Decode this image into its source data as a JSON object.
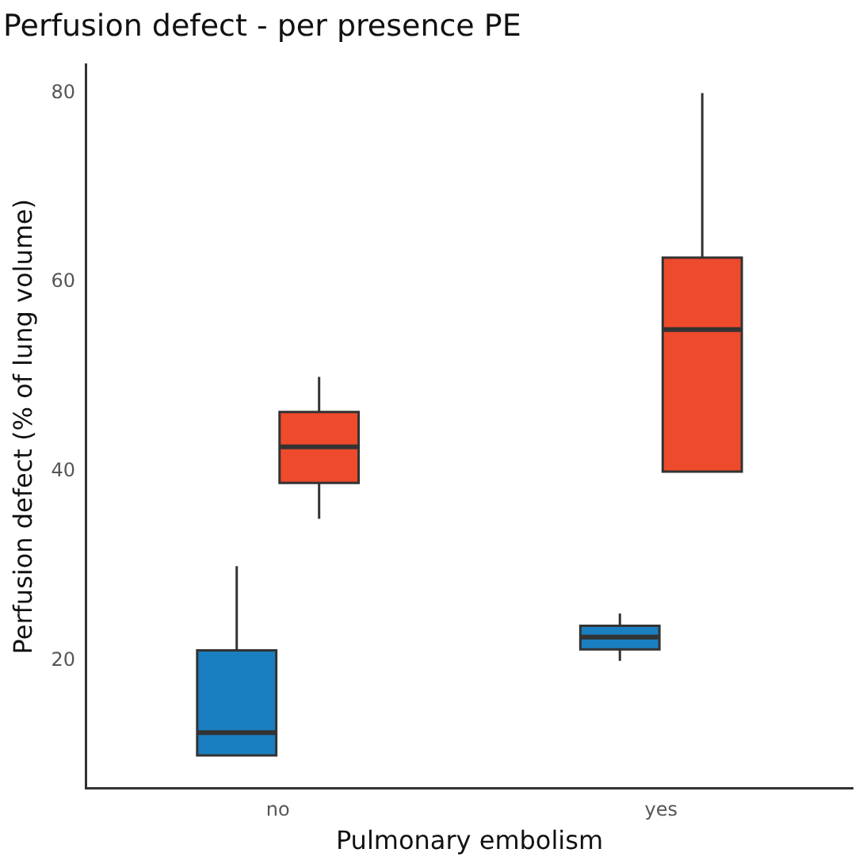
{
  "chart_data": {
    "type": "box",
    "title": "Perfusion defect - per presence PE",
    "xlabel": "Pulmonary embolism",
    "ylabel": "Perfusion defect (% of lung volume)",
    "categories": [
      "no",
      "yes"
    ],
    "series": [
      {
        "color": "#1a7fc0",
        "boxes": [
          {
            "low": 10,
            "q1": 10,
            "median": 12.4,
            "q3": 21.1,
            "high": 30
          },
          {
            "low": 20,
            "q1": 21.2,
            "median": 22.5,
            "q3": 23.7,
            "high": 25
          }
        ]
      },
      {
        "color": "#ee4a2c",
        "boxes": [
          {
            "low": 35,
            "q1": 38.8,
            "median": 42.6,
            "q3": 46.3,
            "high": 50
          },
          {
            "low": 40,
            "q1": 40,
            "median": 55,
            "q3": 62.6,
            "high": 80
          }
        ]
      }
    ],
    "ylim": [
      6.5,
      83
    ],
    "yticks": [
      20,
      40,
      60,
      80
    ],
    "grid": false,
    "legend": false
  }
}
